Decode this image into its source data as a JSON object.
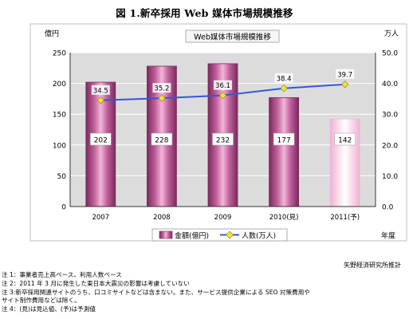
{
  "figure_title": "図 1.新卒採用 Web 媒体市場規模推移",
  "source": "矢野経済研究所推計",
  "notes": [
    "注 1：事業者売上高ベース、利用人数ベース",
    "注 2：2011 年 3 月に発生した東日本大震災の影響は考慮していない",
    "注 3:新卒採用関連サイトのうち、口コミサイトなどは含まない。また、サービス提供企業による SEO 対策費用や",
    "サイト制作費用などは除く。",
    "注 4：(見)は見込値、(予)は予測値"
  ],
  "chart_data": {
    "type": "bar",
    "title": "Web媒体市場規模推移",
    "categories": [
      "2007",
      "2008",
      "2009",
      "2010(見)",
      "2011(予)"
    ],
    "series": [
      {
        "name": "金額(億円)",
        "type": "bar",
        "axis": "left",
        "values": [
          202,
          228,
          232,
          177,
          142
        ]
      },
      {
        "name": "人数(万人)",
        "type": "line",
        "axis": "right",
        "values": [
          34.5,
          35.2,
          36.1,
          38.4,
          39.7
        ]
      }
    ],
    "left_axis": {
      "label": "億円",
      "ylim": [
        0,
        250
      ],
      "ticks": [
        "0",
        "50",
        "100",
        "150",
        "200",
        "250"
      ]
    },
    "right_axis": {
      "label": "万人",
      "ylim": [
        0,
        50
      ],
      "ticks": [
        "0.0",
        "10.0",
        "20.0",
        "30.0",
        "40.0",
        "50.0"
      ]
    },
    "x_axis_label": "年度",
    "forecast_category_index": 4,
    "grid": true,
    "legend_position": "bottom",
    "colors": {
      "bar_fill": "#c0609a",
      "bar_edge": "#7a2a5e",
      "bar_forecast_fill": "#f4c6e0",
      "line": "#3358d8",
      "marker": "#f2e433",
      "plot_bg": "#dcdcdc",
      "title_box_bg": "#f6f6f6"
    }
  }
}
